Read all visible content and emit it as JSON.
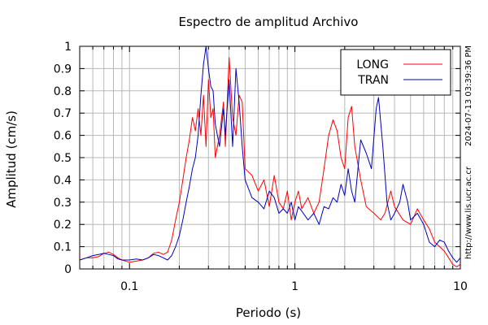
{
  "chart_data": {
    "type": "line",
    "title": "Espectro de amplitud Archivo",
    "xlabel": "Periodo (s)",
    "ylabel": "Amplitud (cm/s)",
    "x_scale": "log",
    "xlim": [
      0.05,
      10
    ],
    "ylim": [
      0,
      1
    ],
    "grid": true,
    "legend_position": "top-right",
    "x_ticks": [
      {
        "value": 0.1,
        "label": "0.1"
      },
      {
        "value": 1,
        "label": "1"
      },
      {
        "value": 10,
        "label": "10"
      }
    ],
    "y_ticks": [
      {
        "value": 0,
        "label": "0"
      },
      {
        "value": 0.1,
        "label": "0.1"
      },
      {
        "value": 0.2,
        "label": "0.2"
      },
      {
        "value": 0.3,
        "label": "0.3"
      },
      {
        "value": 0.4,
        "label": "0.4"
      },
      {
        "value": 0.5,
        "label": "0.5"
      },
      {
        "value": 0.6,
        "label": "0.6"
      },
      {
        "value": 0.7,
        "label": "0.7"
      },
      {
        "value": 0.8,
        "label": "0.8"
      },
      {
        "value": 0.9,
        "label": "0.9"
      },
      {
        "value": 1,
        "label": "1"
      }
    ],
    "timestamp": "2024-07-13 03:39:36 PM",
    "website": "http://www.lis.ucr.ac.cr",
    "series": [
      {
        "name": "LONG",
        "color": "#ff0000",
        "points": [
          [
            0.05,
            0.04
          ],
          [
            0.055,
            0.05
          ],
          [
            0.06,
            0.05
          ],
          [
            0.065,
            0.055
          ],
          [
            0.07,
            0.07
          ],
          [
            0.075,
            0.075
          ],
          [
            0.08,
            0.065
          ],
          [
            0.085,
            0.05
          ],
          [
            0.09,
            0.04
          ],
          [
            0.1,
            0.03
          ],
          [
            0.11,
            0.035
          ],
          [
            0.12,
            0.04
          ],
          [
            0.13,
            0.05
          ],
          [
            0.14,
            0.07
          ],
          [
            0.15,
            0.075
          ],
          [
            0.16,
            0.065
          ],
          [
            0.17,
            0.075
          ],
          [
            0.18,
            0.13
          ],
          [
            0.19,
            0.22
          ],
          [
            0.2,
            0.3
          ],
          [
            0.21,
            0.4
          ],
          [
            0.22,
            0.5
          ],
          [
            0.23,
            0.58
          ],
          [
            0.24,
            0.68
          ],
          [
            0.25,
            0.62
          ],
          [
            0.26,
            0.72
          ],
          [
            0.27,
            0.6
          ],
          [
            0.28,
            0.78
          ],
          [
            0.29,
            0.55
          ],
          [
            0.3,
            0.85
          ],
          [
            0.31,
            0.68
          ],
          [
            0.32,
            0.72
          ],
          [
            0.33,
            0.5
          ],
          [
            0.35,
            0.6
          ],
          [
            0.37,
            0.75
          ],
          [
            0.38,
            0.55
          ],
          [
            0.4,
            0.95
          ],
          [
            0.42,
            0.68
          ],
          [
            0.44,
            0.6
          ],
          [
            0.46,
            0.78
          ],
          [
            0.48,
            0.75
          ],
          [
            0.5,
            0.45
          ],
          [
            0.55,
            0.42
          ],
          [
            0.6,
            0.35
          ],
          [
            0.65,
            0.4
          ],
          [
            0.7,
            0.28
          ],
          [
            0.75,
            0.42
          ],
          [
            0.8,
            0.3
          ],
          [
            0.85,
            0.27
          ],
          [
            0.9,
            0.35
          ],
          [
            0.95,
            0.22
          ],
          [
            1.0,
            0.3
          ],
          [
            1.05,
            0.35
          ],
          [
            1.1,
            0.27
          ],
          [
            1.2,
            0.32
          ],
          [
            1.3,
            0.25
          ],
          [
            1.4,
            0.3
          ],
          [
            1.5,
            0.45
          ],
          [
            1.6,
            0.6
          ],
          [
            1.7,
            0.67
          ],
          [
            1.8,
            0.62
          ],
          [
            1.9,
            0.5
          ],
          [
            2.0,
            0.45
          ],
          [
            2.1,
            0.68
          ],
          [
            2.2,
            0.73
          ],
          [
            2.3,
            0.55
          ],
          [
            2.5,
            0.4
          ],
          [
            2.7,
            0.28
          ],
          [
            3.0,
            0.25
          ],
          [
            3.3,
            0.22
          ],
          [
            3.5,
            0.25
          ],
          [
            3.8,
            0.35
          ],
          [
            4.0,
            0.28
          ],
          [
            4.5,
            0.22
          ],
          [
            5.0,
            0.2
          ],
          [
            5.5,
            0.27
          ],
          [
            6.0,
            0.22
          ],
          [
            6.5,
            0.18
          ],
          [
            7.0,
            0.12
          ],
          [
            7.5,
            0.1
          ],
          [
            8.0,
            0.08
          ],
          [
            8.5,
            0.05
          ],
          [
            9.0,
            0.02
          ],
          [
            9.5,
            0.01
          ],
          [
            10,
            0.02
          ]
        ]
      },
      {
        "name": "TRAN",
        "color": "#0000c0",
        "points": [
          [
            0.05,
            0.04
          ],
          [
            0.055,
            0.05
          ],
          [
            0.06,
            0.06
          ],
          [
            0.065,
            0.065
          ],
          [
            0.07,
            0.07
          ],
          [
            0.075,
            0.065
          ],
          [
            0.08,
            0.06
          ],
          [
            0.085,
            0.045
          ],
          [
            0.09,
            0.04
          ],
          [
            0.1,
            0.04
          ],
          [
            0.11,
            0.045
          ],
          [
            0.12,
            0.04
          ],
          [
            0.13,
            0.05
          ],
          [
            0.14,
            0.065
          ],
          [
            0.15,
            0.06
          ],
          [
            0.16,
            0.05
          ],
          [
            0.17,
            0.04
          ],
          [
            0.18,
            0.06
          ],
          [
            0.19,
            0.1
          ],
          [
            0.2,
            0.15
          ],
          [
            0.21,
            0.22
          ],
          [
            0.22,
            0.3
          ],
          [
            0.23,
            0.37
          ],
          [
            0.24,
            0.45
          ],
          [
            0.25,
            0.5
          ],
          [
            0.26,
            0.6
          ],
          [
            0.27,
            0.78
          ],
          [
            0.28,
            0.92
          ],
          [
            0.29,
            1.0
          ],
          [
            0.3,
            0.9
          ],
          [
            0.31,
            0.82
          ],
          [
            0.32,
            0.8
          ],
          [
            0.33,
            0.65
          ],
          [
            0.35,
            0.55
          ],
          [
            0.37,
            0.72
          ],
          [
            0.38,
            0.6
          ],
          [
            0.4,
            0.85
          ],
          [
            0.42,
            0.55
          ],
          [
            0.44,
            0.9
          ],
          [
            0.46,
            0.75
          ],
          [
            0.48,
            0.55
          ],
          [
            0.5,
            0.4
          ],
          [
            0.55,
            0.32
          ],
          [
            0.6,
            0.3
          ],
          [
            0.65,
            0.27
          ],
          [
            0.7,
            0.35
          ],
          [
            0.75,
            0.32
          ],
          [
            0.8,
            0.25
          ],
          [
            0.85,
            0.27
          ],
          [
            0.9,
            0.25
          ],
          [
            0.95,
            0.3
          ],
          [
            1.0,
            0.22
          ],
          [
            1.05,
            0.28
          ],
          [
            1.1,
            0.26
          ],
          [
            1.2,
            0.22
          ],
          [
            1.3,
            0.25
          ],
          [
            1.4,
            0.2
          ],
          [
            1.5,
            0.28
          ],
          [
            1.6,
            0.27
          ],
          [
            1.7,
            0.32
          ],
          [
            1.8,
            0.3
          ],
          [
            1.9,
            0.38
          ],
          [
            2.0,
            0.33
          ],
          [
            2.1,
            0.45
          ],
          [
            2.2,
            0.35
          ],
          [
            2.3,
            0.3
          ],
          [
            2.5,
            0.58
          ],
          [
            2.7,
            0.52
          ],
          [
            2.9,
            0.45
          ],
          [
            3.1,
            0.72
          ],
          [
            3.2,
            0.77
          ],
          [
            3.4,
            0.55
          ],
          [
            3.6,
            0.3
          ],
          [
            3.8,
            0.22
          ],
          [
            4.0,
            0.25
          ],
          [
            4.3,
            0.3
          ],
          [
            4.5,
            0.38
          ],
          [
            4.8,
            0.3
          ],
          [
            5.0,
            0.22
          ],
          [
            5.5,
            0.25
          ],
          [
            6.0,
            0.2
          ],
          [
            6.5,
            0.12
          ],
          [
            7.0,
            0.1
          ],
          [
            7.5,
            0.13
          ],
          [
            8.0,
            0.12
          ],
          [
            8.5,
            0.08
          ],
          [
            9.0,
            0.05
          ],
          [
            9.5,
            0.03
          ],
          [
            10,
            0.05
          ]
        ]
      }
    ]
  }
}
